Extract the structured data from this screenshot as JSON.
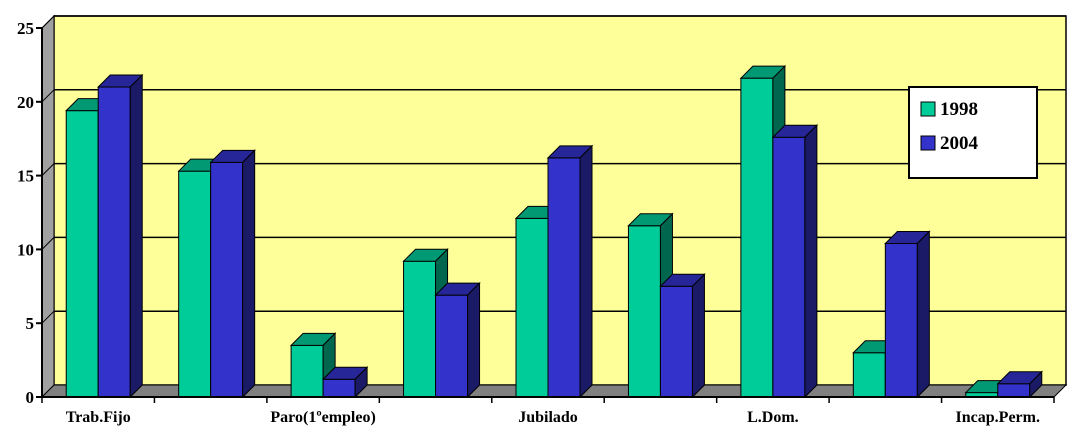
{
  "chart_data": {
    "type": "bar",
    "categories": [
      "Trab.Fijo",
      "",
      "Paro(1ºempleo)",
      "",
      "Jubilado",
      "",
      "L.Dom.",
      "",
      "Incap.Perm."
    ],
    "series": [
      {
        "name": "1998",
        "values": [
          19.4,
          15.3,
          3.5,
          9.2,
          12.1,
          11.6,
          21.6,
          3.0,
          0.3
        ],
        "color": "#00CC99"
      },
      {
        "name": "2004",
        "values": [
          21.0,
          15.9,
          1.2,
          6.9,
          16.2,
          7.5,
          17.6,
          10.4,
          0.9
        ],
        "color": "#3333CC"
      }
    ],
    "title": "",
    "xlabel": "",
    "ylabel": "",
    "ylim": [
      0,
      25
    ],
    "yticks": [
      "0",
      "5",
      "10",
      "15",
      "20",
      "25"
    ],
    "grid": true,
    "legend_position": "top-right",
    "background_color": "#FFFF99",
    "floor_color": "#808080"
  }
}
